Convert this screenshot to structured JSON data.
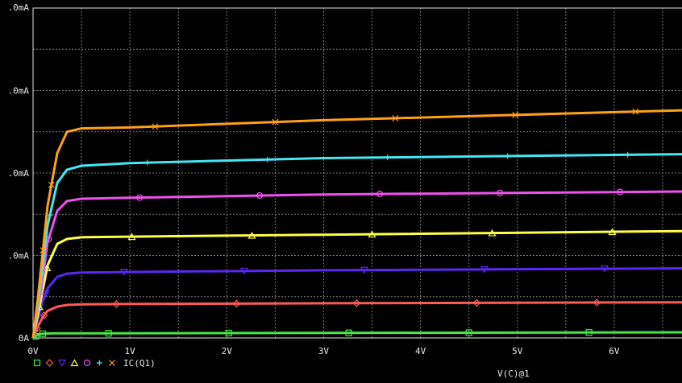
{
  "window": {
    "title": ""
  },
  "chart_data": {
    "type": "line",
    "title": "",
    "xlabel": "V(C)@1",
    "ylabel": "",
    "xlim": [
      0,
      6.7
    ],
    "ylim": [
      0,
      10
    ],
    "grid": true,
    "x_ticks": [
      0,
      1,
      2,
      3,
      4,
      5,
      6
    ],
    "x_tick_labels": [
      "0V",
      "1V",
      "2V",
      "3V",
      "4V",
      "5V",
      "6V"
    ],
    "y_ticks": [
      0,
      2.5,
      5,
      7.5
    ],
    "y_tick_labels": [
      "0A",
      ".0mA",
      ".0mA",
      ".0mA"
    ],
    "top_tick_label": ".0mA",
    "legend_label": "IC(Q1)",
    "legend_placement": "bottom-left",
    "series": [
      {
        "marker": "square",
        "color": "#46e646",
        "x": [
          0,
          0.03,
          0.06,
          0.1,
          0.2,
          6.7
        ],
        "values": [
          0,
          0.05,
          0.11,
          0.13,
          0.14,
          0.17
        ]
      },
      {
        "marker": "diamond",
        "color": "#ff5a5a",
        "x": [
          0,
          0.05,
          0.1,
          0.15,
          0.25,
          0.35,
          0.5,
          1.0,
          3.0,
          6.7
        ],
        "values": [
          0,
          0.35,
          0.63,
          0.82,
          0.95,
          1.0,
          1.02,
          1.03,
          1.05,
          1.08
        ]
      },
      {
        "marker": "triangle-down",
        "color": "#5a28f0",
        "x": [
          0,
          0.05,
          0.1,
          0.15,
          0.25,
          0.35,
          0.5,
          1.0,
          3.0,
          6.7
        ],
        "values": [
          0,
          0.6,
          1.1,
          1.5,
          1.85,
          1.95,
          1.98,
          2.0,
          2.05,
          2.11
        ]
      },
      {
        "marker": "triangle",
        "color": "#ffff46",
        "x": [
          0,
          0.05,
          0.1,
          0.15,
          0.25,
          0.35,
          0.5,
          1.0,
          3.0,
          6.7
        ],
        "values": [
          0,
          0.7,
          1.45,
          2.2,
          2.85,
          3.0,
          3.05,
          3.07,
          3.13,
          3.24
        ]
      },
      {
        "marker": "circle",
        "color": "#f050f0",
        "x": [
          0,
          0.05,
          0.1,
          0.15,
          0.25,
          0.35,
          0.5,
          1.0,
          3.0,
          6.7
        ],
        "values": [
          0,
          0.9,
          1.8,
          2.9,
          3.85,
          4.15,
          4.22,
          4.25,
          4.35,
          4.44
        ]
      },
      {
        "marker": "plus",
        "color": "#46e6f0",
        "x": [
          0,
          0.05,
          0.1,
          0.15,
          0.25,
          0.35,
          0.5,
          1.0,
          3.0,
          6.7
        ],
        "values": [
          0,
          1.0,
          2.2,
          3.4,
          4.7,
          5.1,
          5.22,
          5.3,
          5.45,
          5.57
        ]
      },
      {
        "marker": "x",
        "color": "#ffa018",
        "x": [
          0,
          0.05,
          0.1,
          0.15,
          0.25,
          0.35,
          0.5,
          1.0,
          3.0,
          6.7
        ],
        "values": [
          0,
          1.2,
          2.6,
          4.0,
          5.6,
          6.25,
          6.35,
          6.38,
          6.6,
          6.9
        ]
      }
    ]
  }
}
